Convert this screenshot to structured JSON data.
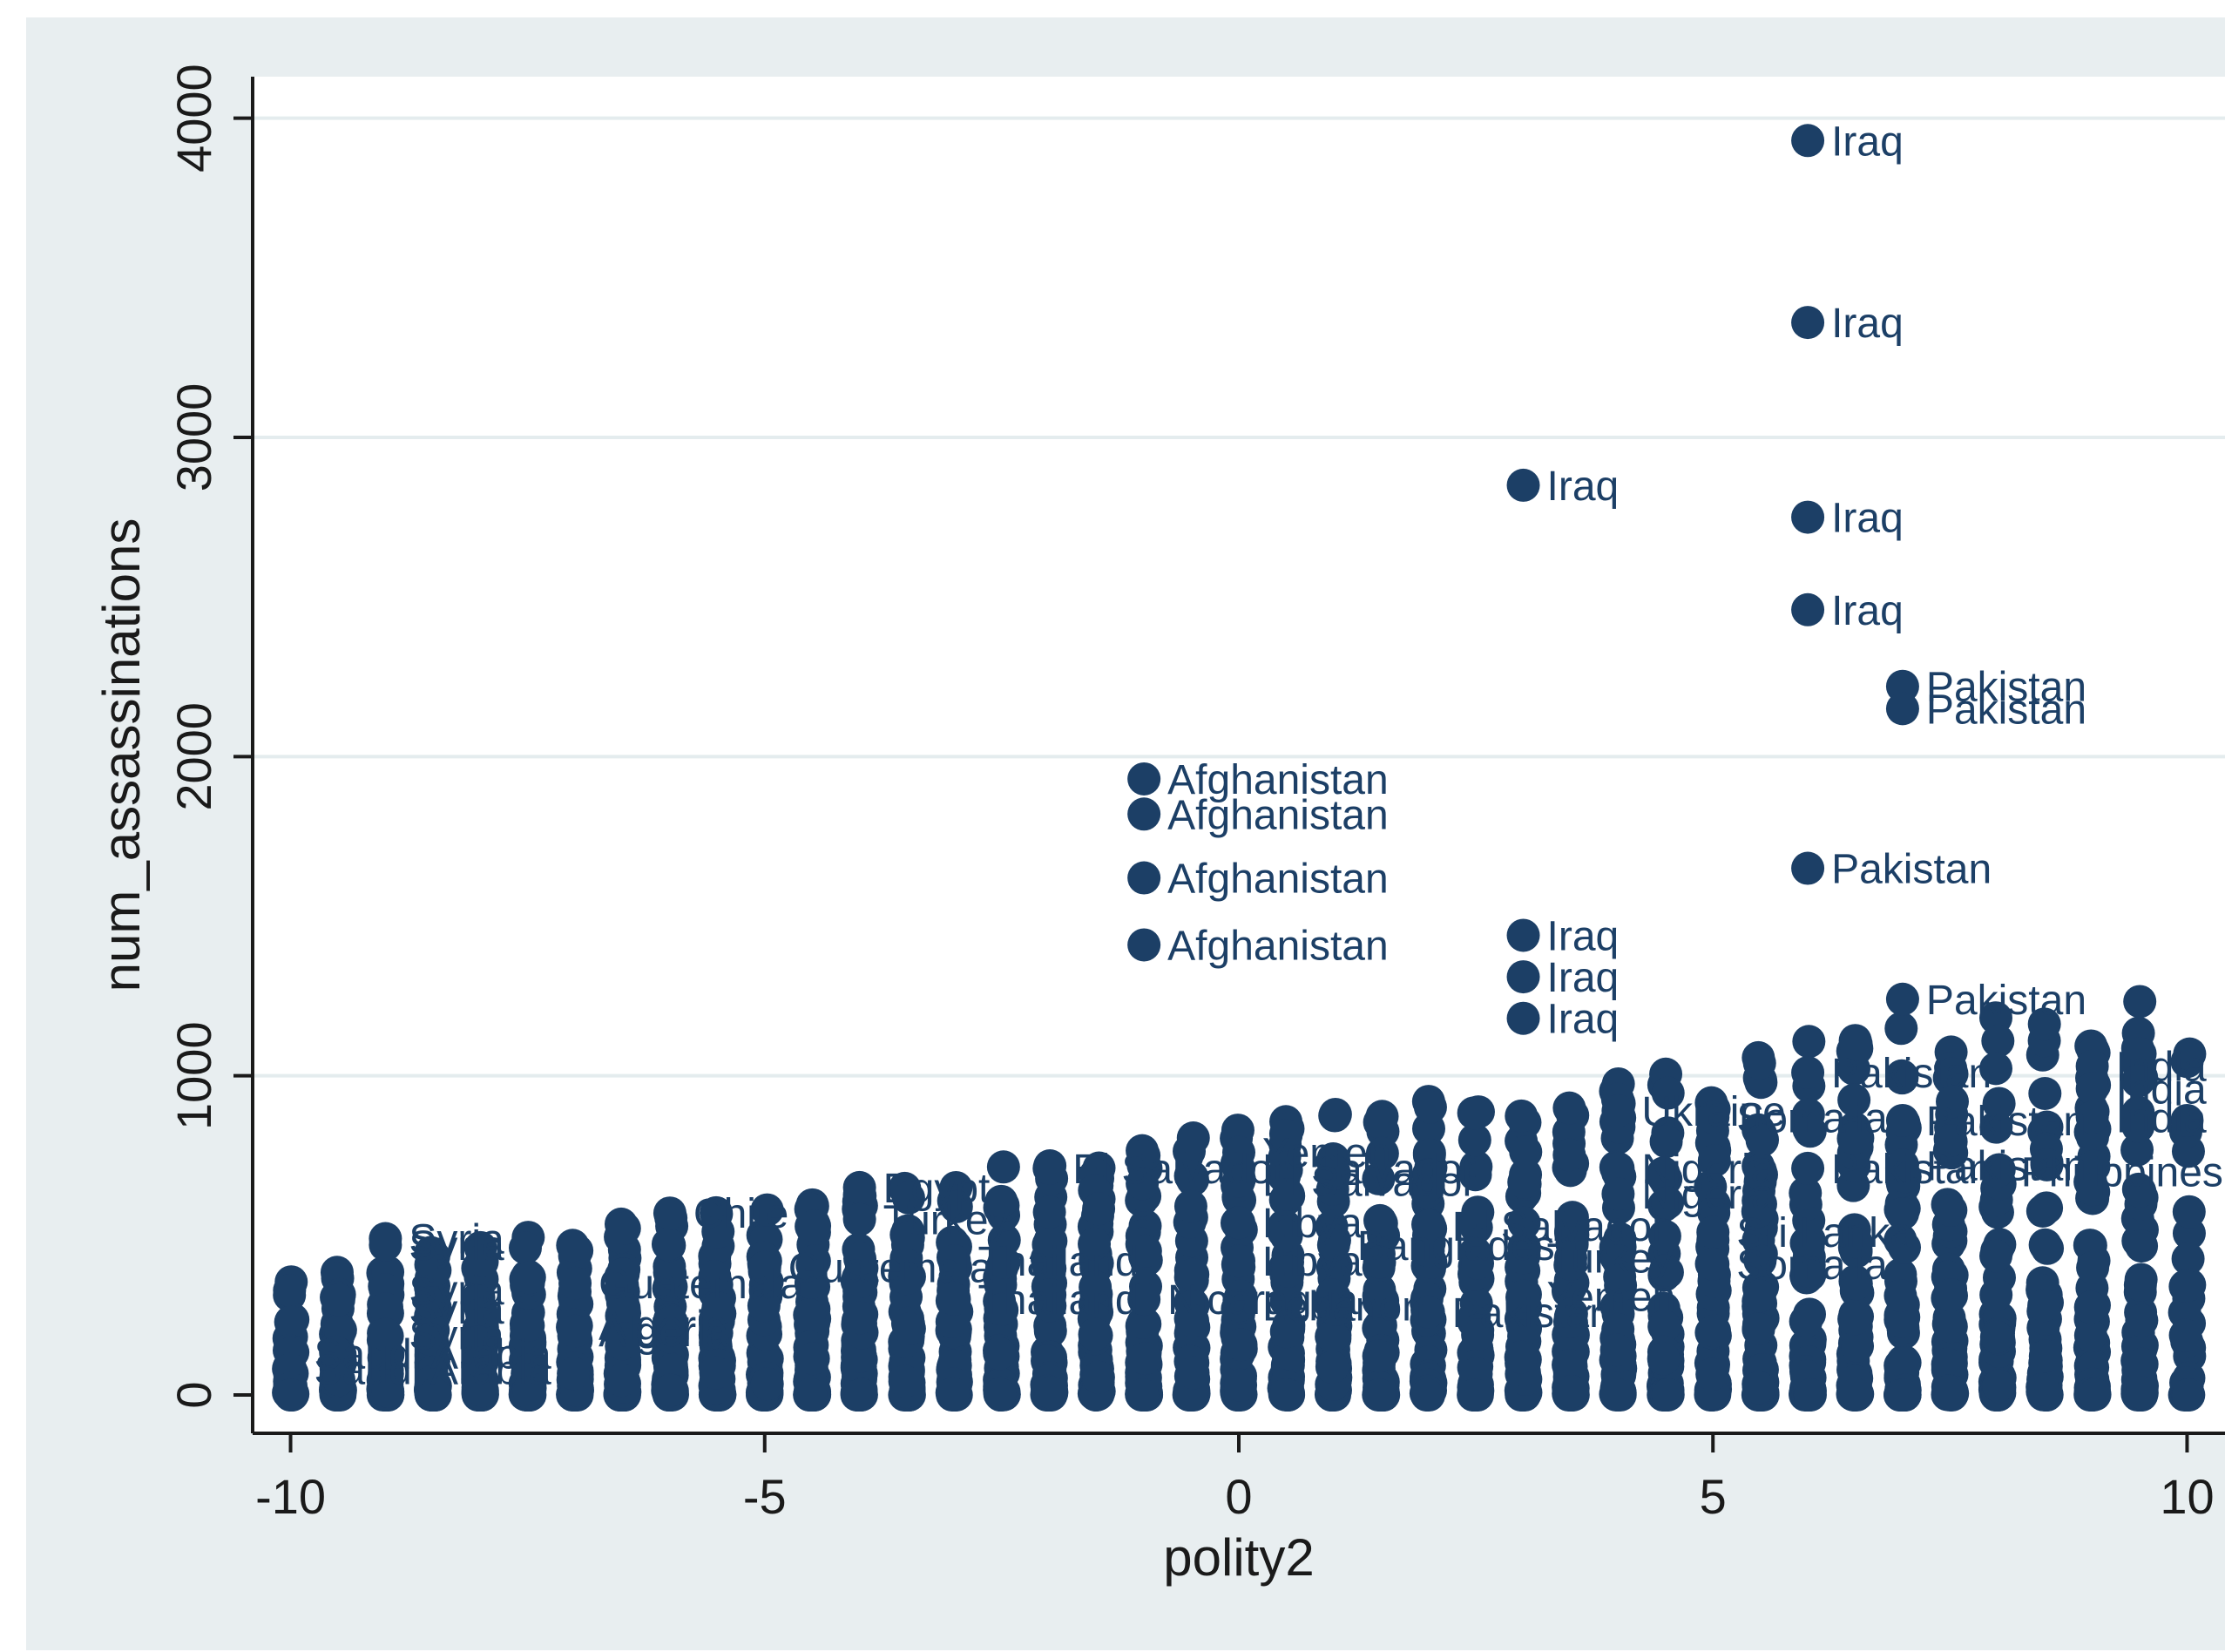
{
  "chart_data": {
    "type": "scatter",
    "title": "",
    "xlabel": "polity2",
    "ylabel": "num_assassinations",
    "xlim": [
      -10.4,
      10.4
    ],
    "ylim": [
      -120,
      4130
    ],
    "x_ticks": [
      -10,
      -5,
      0,
      5,
      10
    ],
    "x_tick_labels": [
      "-10",
      "-5",
      "0",
      "5",
      "10"
    ],
    "y_ticks": [
      0,
      1000,
      2000,
      3000,
      4000
    ],
    "y_tick_labels": [
      "0",
      "1000",
      "2000",
      "3000",
      "4000"
    ],
    "grid": "horizontal",
    "marker_color": "#1c3f66",
    "background_color": "#e8eef0",
    "plot_background_color": "#ffffff",
    "grid_color": "#e4ecee",
    "points": [
      {
        "x": 6,
        "y": 3930,
        "label": "Iraq"
      },
      {
        "x": 6,
        "y": 3360,
        "label": "Iraq"
      },
      {
        "x": 3,
        "y": 2850,
        "label": "Iraq"
      },
      {
        "x": 6,
        "y": 2750,
        "label": "Iraq"
      },
      {
        "x": 6,
        "y": 2460,
        "label": "Iraq"
      },
      {
        "x": 7,
        "y": 2220,
        "label": "Pakistan"
      },
      {
        "x": 7,
        "y": 2150,
        "label": "Pakistan"
      },
      {
        "x": -1,
        "y": 1930,
        "label": "Afghanistan"
      },
      {
        "x": -1,
        "y": 1820,
        "label": "Afghanistan"
      },
      {
        "x": -1,
        "y": 1620,
        "label": "Afghanistan"
      },
      {
        "x": -1,
        "y": 1410,
        "label": "Afghanistan"
      },
      {
        "x": 6,
        "y": 1650,
        "label": "Pakistan"
      },
      {
        "x": 3,
        "y": 1440,
        "label": "Iraq"
      },
      {
        "x": 3,
        "y": 1310,
        "label": "Iraq"
      },
      {
        "x": 3,
        "y": 1180,
        "label": "Iraq"
      },
      {
        "x": 7,
        "y": 1240,
        "label": "Pakistan"
      },
      {
        "x": 6,
        "y": 1010,
        "label": "Pakistan"
      },
      {
        "x": 9,
        "y": 1030,
        "label": "India"
      },
      {
        "x": 9,
        "y": 960,
        "label": "India"
      },
      {
        "x": 9,
        "y": 870,
        "label": "India"
      },
      {
        "x": 4,
        "y": 890,
        "label": "Ukraine"
      },
      {
        "x": 5,
        "y": 870,
        "label": "Somalia"
      },
      {
        "x": 7,
        "y": 860,
        "label": "Pakistan"
      },
      {
        "x": 0,
        "y": 760,
        "label": "Yemen"
      },
      {
        "x": -2,
        "y": 710,
        "label": "El Salvador"
      },
      {
        "x": 0,
        "y": 710,
        "label": "El Salvador"
      },
      {
        "x": 0,
        "y": 670,
        "label": "El Salvador"
      },
      {
        "x": -4,
        "y": 650,
        "label": "Egypt"
      },
      {
        "x": -4,
        "y": 550,
        "label": "Turkey"
      },
      {
        "x": -6,
        "y": 570,
        "label": "Chile"
      },
      {
        "x": 4,
        "y": 710,
        "label": "Nigeria"
      },
      {
        "x": 4,
        "y": 630,
        "label": "Nigeria"
      },
      {
        "x": 6,
        "y": 710,
        "label": "Pakistan"
      },
      {
        "x": 7,
        "y": 720,
        "label": "Pakistan"
      },
      {
        "x": 8,
        "y": 700,
        "label": "Philippines"
      },
      {
        "x": 0,
        "y": 540,
        "label": "Libya"
      },
      {
        "x": 0,
        "y": 420,
        "label": "Libya"
      },
      {
        "x": 1,
        "y": 470,
        "label": "Bangladesh"
      },
      {
        "x": 2,
        "y": 530,
        "label": "El Salvador"
      },
      {
        "x": 3,
        "y": 430,
        "label": "Turkey"
      },
      {
        "x": 3,
        "y": 310,
        "label": "Yemen"
      },
      {
        "x": 2,
        "y": 260,
        "label": "Pakistan"
      },
      {
        "x": 5,
        "y": 510,
        "label": "Sri Lanka"
      },
      {
        "x": 5,
        "y": 410,
        "label": "Somalia"
      },
      {
        "x": -9,
        "y": 490,
        "label": "Syria"
      },
      {
        "x": -9,
        "y": 470,
        "label": "Syria"
      },
      {
        "x": -9,
        "y": 330,
        "label": "Syria"
      },
      {
        "x": -9,
        "y": 270,
        "label": "Syria"
      },
      {
        "x": -9,
        "y": 190,
        "label": "Syria"
      },
      {
        "x": -7,
        "y": 350,
        "label": "Guatemala"
      },
      {
        "x": -7,
        "y": 220,
        "label": "Algeria"
      },
      {
        "x": -7,
        "y": 200,
        "label": "Algeria"
      },
      {
        "x": -5,
        "y": 400,
        "label": "Guatemala"
      },
      {
        "x": -3,
        "y": 420,
        "label": "Thailand"
      },
      {
        "x": -3,
        "y": 300,
        "label": "Thailand"
      },
      {
        "x": -1,
        "y": 300,
        "label": "Nicaragua"
      },
      {
        "x": 0,
        "y": 280,
        "label": "Lebanon"
      },
      {
        "x": -10,
        "y": 130,
        "label": "Saudi Arabia"
      },
      {
        "x": -10,
        "y": 80,
        "label": "Saudi Arabia"
      },
      {
        "x": -10,
        "y": 20,
        "label": ""
      },
      {
        "x": -10,
        "y": 0,
        "label": ""
      }
    ]
  }
}
